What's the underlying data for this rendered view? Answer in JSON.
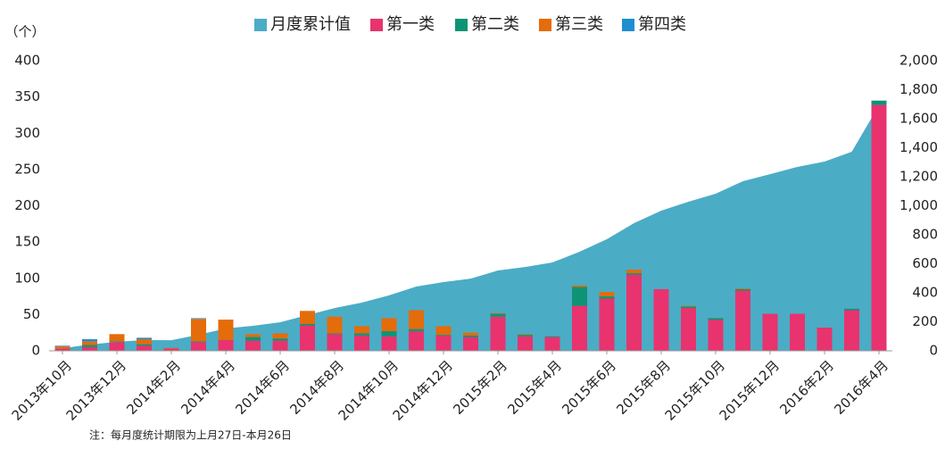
{
  "chart_data": {
    "type": "bar",
    "y_label": "（个）",
    "note": "注：每月度统计期限为上月27日-本月26日",
    "categories": [
      "2013年10月",
      null,
      "2013年12月",
      null,
      "2014年2月",
      null,
      "2014年4月",
      null,
      "2014年6月",
      null,
      "2014年8月",
      null,
      "2014年10月",
      null,
      "2014年12月",
      null,
      "2015年2月",
      null,
      "2015年4月",
      null,
      "2015年6月",
      null,
      "2015年8月",
      null,
      "2015年10月",
      null,
      "2015年12月",
      null,
      "2016年2月",
      null,
      "2016年4月"
    ],
    "ylim": [
      0,
      400
    ],
    "yticks": [
      0,
      50,
      100,
      150,
      200,
      250,
      300,
      350,
      400
    ],
    "y2lim": [
      0,
      2000
    ],
    "y2ticks": [
      0,
      200,
      400,
      600,
      800,
      {
        "value": 1000,
        "label": "1,000"
      },
      {
        "value": 1200,
        "label": "1,200"
      },
      {
        "value": 1400,
        "label": "1,400"
      },
      {
        "value": 1600,
        "label": "1,600"
      },
      {
        "value": 1800,
        "label": "1,800"
      },
      {
        "value": 2000,
        "label": "2,000"
      }
    ],
    "series": [
      {
        "name": "月度累计值",
        "type": "area",
        "axis": "y2",
        "color": "#4bacc6",
        "values": [
          18,
          43,
          62,
          74,
          73,
          111,
          154,
          172,
          197,
          246,
          295,
          332,
          382,
          443,
          474,
          498,
          554,
          578,
          609,
          683,
          769,
          880,
          966,
          1028,
          1083,
          1169,
          1218,
          1268,
          1305,
          1372,
          1692
        ]
      },
      {
        "name": "第一类",
        "type": "bar",
        "color": "#e8336e",
        "values": [
          3,
          5,
          12,
          7,
          3,
          12,
          15,
          14,
          14,
          35,
          23,
          21,
          20,
          27,
          21,
          19,
          47,
          20,
          19,
          62,
          72,
          105,
          85,
          59,
          43,
          83,
          51,
          51,
          32,
          56,
          339
        ]
      },
      {
        "name": "第二类",
        "type": "bar",
        "color": "#0e9474",
        "values": [
          0,
          3,
          1,
          2,
          0,
          1,
          0,
          5,
          3,
          2,
          1,
          3,
          7,
          3,
          1,
          2,
          4,
          2,
          1,
          26,
          3,
          2,
          0,
          2,
          2,
          2,
          0,
          0,
          0,
          2,
          6
        ]
      },
      {
        "name": "第三类",
        "type": "bar",
        "color": "#e46c0a",
        "values": [
          3,
          5,
          10,
          7,
          1,
          31,
          28,
          4,
          7,
          18,
          23,
          10,
          18,
          26,
          12,
          4,
          1,
          1,
          0,
          2,
          6,
          5,
          0,
          1,
          0,
          1,
          0,
          0,
          0,
          0,
          0
        ]
      },
      {
        "name": "第四类",
        "type": "bar",
        "color": "#1f8ed1",
        "values": [
          1,
          3,
          0,
          2,
          0,
          1,
          0,
          0,
          0,
          0,
          0,
          0,
          0,
          0,
          0,
          0,
          0,
          0,
          0,
          0,
          0,
          0,
          0,
          0,
          0,
          0,
          0,
          0,
          0,
          0,
          0
        ]
      }
    ]
  }
}
